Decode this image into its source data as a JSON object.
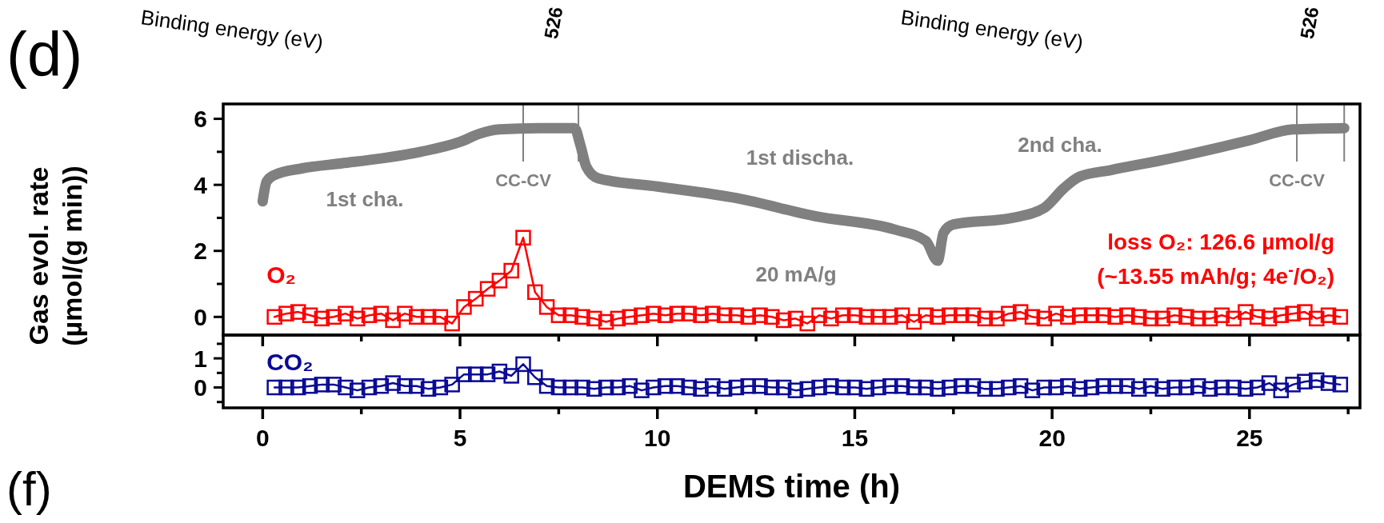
{
  "chart_data": [
    {
      "type": "line",
      "ylabel": "Gas evol. rate\n(µmol/(g min))",
      "xlim": [
        -1,
        27.8
      ],
      "ylim": [
        -0.55,
        6.45
      ],
      "tick_labels": "y",
      "marker": "square",
      "grid": false,
      "xticks": [
        {
          "value": 0,
          "label": null
        },
        {
          "value": 2.5,
          "label": null
        },
        {
          "value": 5,
          "label": null
        },
        {
          "value": 7.5,
          "label": null
        },
        {
          "value": 10,
          "label": null
        },
        {
          "value": 12.5,
          "label": null
        },
        {
          "value": 15,
          "label": null
        },
        {
          "value": 17.5,
          "label": null
        },
        {
          "value": 20,
          "label": null
        },
        {
          "value": 22.5,
          "label": null
        },
        {
          "value": 25,
          "label": null
        },
        {
          "value": 27.5,
          "label": null
        }
      ],
      "yticks": [
        0,
        {
          "value": 1,
          "label": null
        },
        2,
        {
          "value": 3,
          "label": null
        },
        4,
        {
          "value": 5,
          "label": null
        },
        6
      ],
      "series": [
        {
          "color": "#808080",
          "marker": "none",
          "x": [
            0,
            0.1,
            0.3,
            1,
            2,
            3,
            4,
            5,
            5.5,
            6,
            7,
            7.9,
            8.05,
            8.2,
            8.5,
            10,
            12,
            14,
            16,
            16.8,
            17.1,
            17.25,
            17.5,
            19,
            19.8,
            20.3,
            20.7,
            21.5,
            23,
            25,
            26.1,
            27.4
          ],
          "values": [
            3.5,
            4.1,
            4.3,
            4.5,
            4.65,
            4.8,
            5.0,
            5.3,
            5.55,
            5.68,
            5.72,
            5.72,
            5.2,
            4.55,
            4.2,
            3.95,
            3.6,
            3.05,
            2.65,
            2.3,
            1.7,
            2.55,
            2.8,
            3.0,
            3.3,
            3.9,
            4.25,
            4.45,
            4.8,
            5.35,
            5.68,
            5.72
          ]
        },
        {
          "name": "O₂",
          "color": "#ff0000",
          "x": [
            0.3,
            0.6,
            0.9,
            1.2,
            1.5,
            1.8,
            2.1,
            2.4,
            2.7,
            3.0,
            3.3,
            3.6,
            3.9,
            4.2,
            4.5,
            4.8,
            5.1,
            5.4,
            5.7,
            6.0,
            6.3,
            6.6,
            6.9,
            7.2,
            7.5,
            7.8,
            8.1,
            8.4,
            8.7,
            9.0,
            9.3,
            9.6,
            9.9,
            10.2,
            10.5,
            10.8,
            11.1,
            11.4,
            11.7,
            12.0,
            12.3,
            12.6,
            12.9,
            13.2,
            13.5,
            13.8,
            14.1,
            14.4,
            14.7,
            15.0,
            15.3,
            15.6,
            15.9,
            16.2,
            16.5,
            16.8,
            17.1,
            17.4,
            17.7,
            18.0,
            18.3,
            18.6,
            18.9,
            19.2,
            19.5,
            19.8,
            20.1,
            20.4,
            20.7,
            21.0,
            21.3,
            21.6,
            21.9,
            22.2,
            22.5,
            22.8,
            23.1,
            23.4,
            23.7,
            24.0,
            24.3,
            24.6,
            24.9,
            25.2,
            25.5,
            25.8,
            26.1,
            26.4,
            26.7,
            27.0,
            27.3
          ],
          "values": [
            0,
            0.1,
            0.15,
            0.05,
            -0.05,
            0,
            0.1,
            -0.05,
            0.05,
            0.1,
            -0.1,
            0.1,
            0,
            0,
            0,
            -0.2,
            0.3,
            0.55,
            0.85,
            1.1,
            1.4,
            2.4,
            0.75,
            0.3,
            0.05,
            0.05,
            0,
            -0.05,
            -0.15,
            -0.05,
            0,
            0.05,
            0.1,
            0.05,
            0.1,
            0.1,
            0.05,
            0.1,
            0.05,
            0.05,
            0,
            0.05,
            0,
            -0.1,
            -0.05,
            -0.2,
            0.05,
            -0.05,
            0.05,
            0.05,
            0,
            0,
            0,
            0.05,
            -0.15,
            0.05,
            0,
            0.05,
            0.05,
            0.05,
            -0.05,
            -0.05,
            0.1,
            0.15,
            0,
            -0.05,
            0.1,
            0,
            0.05,
            0.05,
            0.05,
            0,
            0.05,
            0,
            -0.05,
            -0.05,
            0.05,
            0,
            -0.05,
            -0.05,
            0.05,
            -0.05,
            0.15,
            0,
            -0.05,
            0.05,
            0.1,
            0.15,
            -0.05,
            0.05,
            0
          ]
        }
      ],
      "ref_lines": [
        {
          "axis": "x",
          "value": 6.6,
          "label": "CC-CV",
          "color": "#808080"
        },
        {
          "axis": "x",
          "value": 8.0,
          "label": null,
          "color": "#808080"
        },
        {
          "axis": "x",
          "value": 26.2,
          "label": "CC-CV",
          "color": "#808080"
        },
        {
          "axis": "x",
          "value": 27.4,
          "label": null,
          "color": "#808080"
        }
      ],
      "annotations": [
        "1st cha.",
        "1st discha.",
        "2nd cha.",
        "20 mA/g",
        "loss O₂: 126.6 µmol/g",
        "(~13.55 mAh/g; 4e$^{-}$/O₂)",
        "(d)",
        "(f)",
        "Binding energy (eV)",
        "Binding energy (eV)",
        "526",
        "526"
      ]
    },
    {
      "type": "line",
      "xlabel": "DEMS time (h)",
      "xlim": [
        -1,
        27.8
      ],
      "ylim": [
        -0.7,
        1.8
      ],
      "marker": "square",
      "grid": false,
      "xticks": [
        0,
        {
          "value": 2.5,
          "label": null
        },
        5,
        {
          "value": 7.5,
          "label": null
        },
        10,
        {
          "value": 12.5,
          "label": null
        },
        15,
        {
          "value": 17.5,
          "label": null
        },
        20,
        {
          "value": 22.5,
          "label": null
        },
        25,
        {
          "value": 27.5,
          "label": null
        }
      ],
      "yticks": [
        {
          "value": -0.5,
          "label": null
        },
        0,
        {
          "value": 0.5,
          "label": null
        },
        1,
        {
          "value": 1.5,
          "label": null
        }
      ],
      "series": [
        {
          "name": "CO₂",
          "color": "#0a0a96",
          "x": [
            0.3,
            0.6,
            0.9,
            1.2,
            1.5,
            1.8,
            2.1,
            2.4,
            2.7,
            3.0,
            3.3,
            3.6,
            3.9,
            4.2,
            4.5,
            4.8,
            5.1,
            5.4,
            5.7,
            6.0,
            6.3,
            6.6,
            6.9,
            7.2,
            7.5,
            7.8,
            8.1,
            8.4,
            8.7,
            9.0,
            9.3,
            9.6,
            9.9,
            10.2,
            10.5,
            10.8,
            11.1,
            11.4,
            11.7,
            12.0,
            12.3,
            12.6,
            12.9,
            13.2,
            13.5,
            13.8,
            14.1,
            14.4,
            14.7,
            15.0,
            15.3,
            15.6,
            15.9,
            16.2,
            16.5,
            16.8,
            17.1,
            17.4,
            17.7,
            18.0,
            18.3,
            18.6,
            18.9,
            19.2,
            19.5,
            19.8,
            20.1,
            20.4,
            20.7,
            21.0,
            21.3,
            21.6,
            21.9,
            22.2,
            22.5,
            22.8,
            23.1,
            23.4,
            23.7,
            24.0,
            24.3,
            24.6,
            24.9,
            25.2,
            25.5,
            25.8,
            26.1,
            26.4,
            26.7,
            27.0,
            27.3
          ],
          "values": [
            0,
            0,
            0,
            0.05,
            0.1,
            0.1,
            0,
            -0.1,
            0,
            0.05,
            0.15,
            0.05,
            0.05,
            -0.05,
            0,
            0.1,
            0.45,
            0.45,
            0.45,
            0.55,
            0.4,
            0.8,
            0.35,
            0.05,
            0,
            0,
            0,
            -0.05,
            0,
            0,
            0.05,
            -0.1,
            0,
            0.05,
            0.05,
            0,
            -0.05,
            0.05,
            -0.05,
            0,
            0.05,
            0.05,
            0,
            0,
            -0.1,
            -0.05,
            0,
            0.05,
            0,
            0,
            -0.05,
            0,
            0.05,
            0.05,
            0,
            0,
            -0.05,
            0,
            0.05,
            0.05,
            -0.05,
            -0.05,
            0,
            0.05,
            -0.1,
            0,
            0,
            0.05,
            -0.05,
            0,
            0.05,
            0.05,
            0.05,
            -0.05,
            0.05,
            -0.05,
            0,
            0,
            0.05,
            -0.05,
            0,
            0,
            -0.05,
            0,
            0.15,
            -0.1,
            0.1,
            0.2,
            0.25,
            0.15,
            0.1
          ]
        }
      ]
    }
  ]
}
